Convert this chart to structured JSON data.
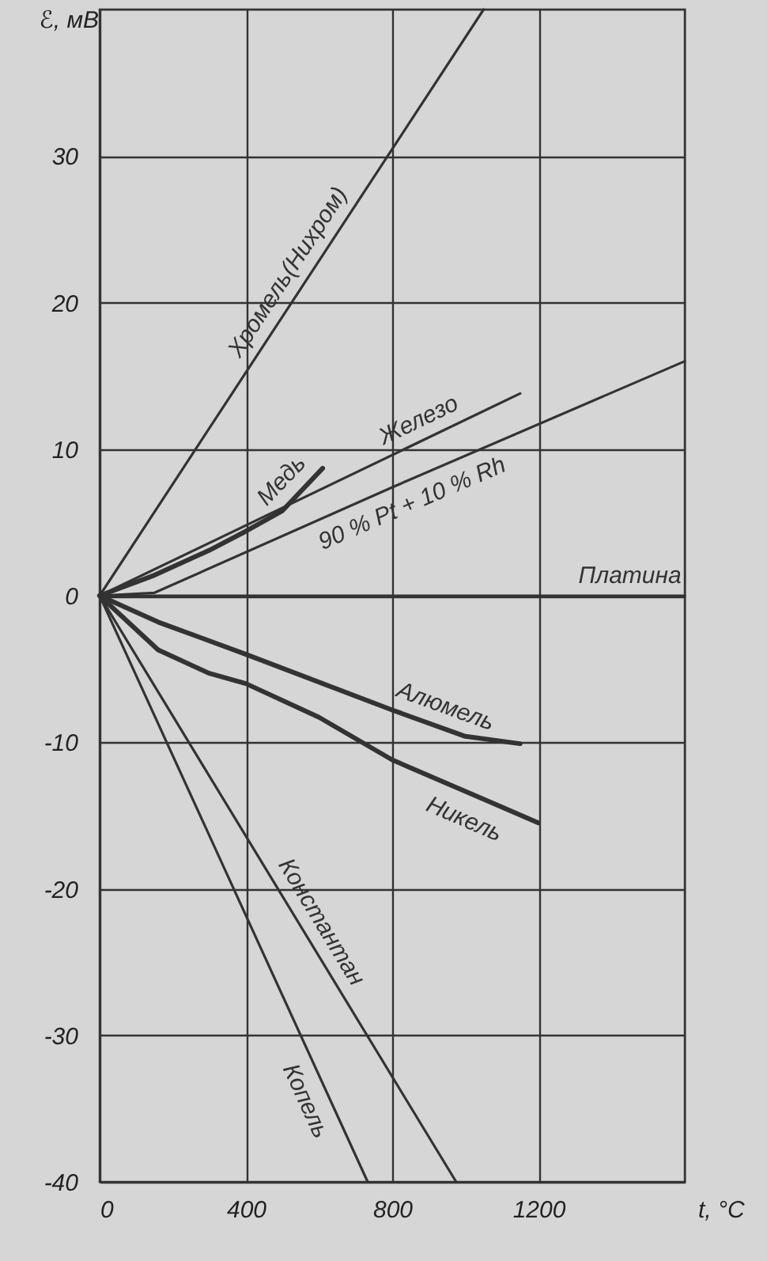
{
  "chart_data": {
    "type": "line",
    "xlabel": "t, °C",
    "ylabel": "ℰ, мВ",
    "xlim": [
      0,
      1600
    ],
    "ylim": [
      -40,
      40
    ],
    "xticks": [
      0,
      400,
      800,
      1200
    ],
    "yticks": [
      -40,
      -30,
      -20,
      -10,
      0,
      10,
      20,
      30
    ],
    "grid": true,
    "marker": "none",
    "line_style": "solid",
    "series": [
      {
        "name": "Хромель(Нихром)",
        "color": "#333333",
        "x": [
          0,
          1050
        ],
        "values": [
          0,
          40
        ]
      },
      {
        "name": "Медь",
        "color": "#333333",
        "x": [
          0,
          150,
          300,
          400,
          500,
          610
        ],
        "values": [
          0,
          1.4,
          3.1,
          4.4,
          5.8,
          8.7
        ]
      },
      {
        "name": "Железо",
        "color": "#333333",
        "x": [
          0,
          1150
        ],
        "values": [
          0,
          13.8
        ]
      },
      {
        "name": "90 % Pt + 10 % Rh",
        "color": "#333333",
        "x": [
          0,
          150,
          800,
          1600
        ],
        "values": [
          0,
          0.2,
          7.4,
          16
        ]
      },
      {
        "name": "Платина",
        "color": "#333333",
        "x": [
          0,
          1600
        ],
        "values": [
          0,
          0
        ]
      },
      {
        "name": "Алюмель",
        "color": "#333333",
        "x": [
          0,
          160,
          400,
          800,
          1000,
          1150
        ],
        "values": [
          0,
          -1.8,
          -4,
          -7.8,
          -9.6,
          -10.1
        ]
      },
      {
        "name": "Никель",
        "color": "#333333",
        "x": [
          0,
          160,
          300,
          400,
          600,
          800,
          1200
        ],
        "values": [
          0,
          -3.7,
          -5.3,
          -6,
          -8.3,
          -11.2,
          -15.5
        ]
      },
      {
        "name": "Константан",
        "color": "#333333",
        "x": [
          0,
          975
        ],
        "values": [
          0,
          -40
        ]
      },
      {
        "name": "Копель",
        "color": "#333333",
        "x": [
          0,
          733
        ],
        "values": [
          0,
          -40
        ]
      }
    ]
  }
}
